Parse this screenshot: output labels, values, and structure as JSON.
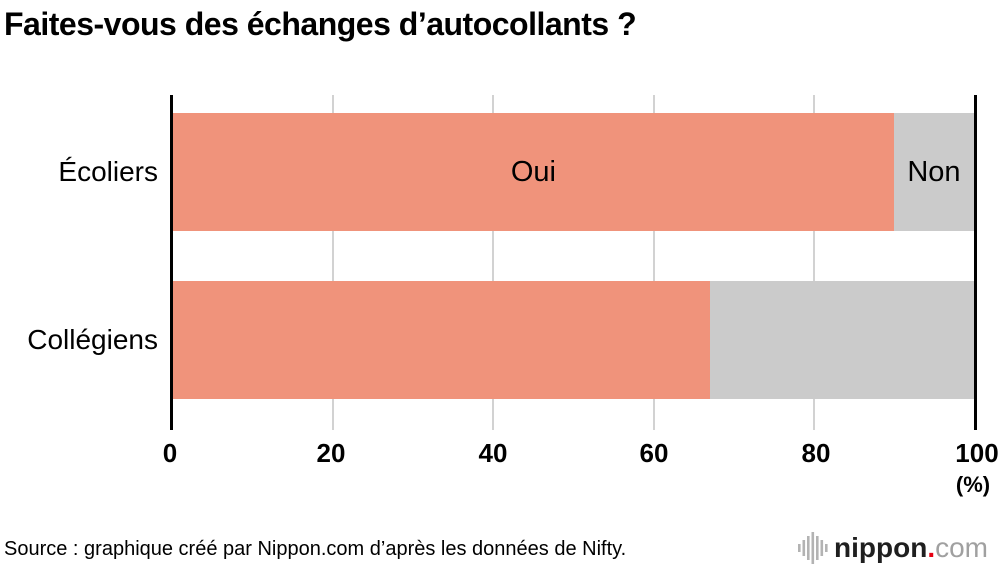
{
  "chart_data": {
    "type": "bar",
    "orientation": "horizontal",
    "stacked": true,
    "title": "Faites-vous des échanges d’autocollants ?",
    "categories": [
      "Écoliers",
      "Collégiens"
    ],
    "series": [
      {
        "name": "Oui",
        "values": [
          90,
          67
        ],
        "color": "#f0937b"
      },
      {
        "name": "Non",
        "values": [
          10,
          33
        ],
        "color": "#cbcbcb"
      }
    ],
    "xlim": [
      0,
      100
    ],
    "xticks": [
      "0",
      "20",
      "40",
      "60",
      "80",
      "100"
    ],
    "unit_label": "(%)",
    "grid": "vertical gridlines at 20/40/60/80, solid black lines at 0 and 100",
    "legend_position": "labels inside first bar"
  },
  "source": {
    "text": "Source : graphique créé par Nippon.com d’après les données de Nifty."
  },
  "logo": {
    "icon": "waveform-icon",
    "brand": "nippon",
    "dot": ".",
    "tld": "com",
    "brand_color": "#1f1f1f",
    "dot_color": "#e60012",
    "tld_color": "#a0a0a0"
  }
}
